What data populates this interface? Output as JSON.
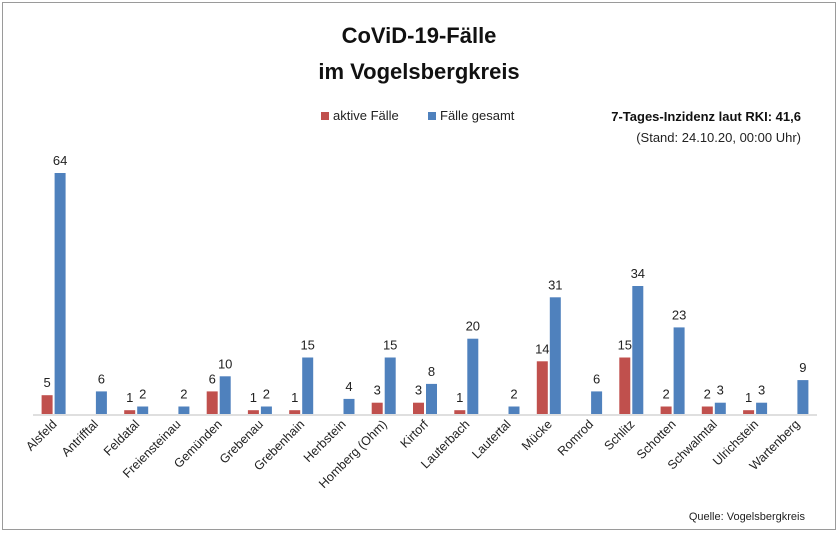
{
  "chart_data": {
    "type": "bar",
    "title": "CoViD-19-Fälle",
    "subtitle": "im Vogelsbergkreis",
    "info_line_1": "7-Tages-Inzidenz laut RKI: 41,6",
    "info_line_2": "(Stand: 24.10.20, 00:00 Uhr)",
    "source": "Quelle: Vogelsbergkreis",
    "categories": [
      "Alsfeld",
      "Antrifftal",
      "Feldatal",
      "Freiensteinau",
      "Gemünden",
      "Grebenau",
      "Grebenhain",
      "Herbstein",
      "Homberg (Ohm)",
      "Kirtorf",
      "Lauterbach",
      "Lautertal",
      "Mücke",
      "Romrod",
      "Schlitz",
      "Schotten",
      "Schwalmtal",
      "Ulrichstein",
      "Wartenberg"
    ],
    "series": [
      {
        "name": "aktive Fälle",
        "color": "#c0504d",
        "values": [
          5,
          0,
          1,
          0,
          6,
          1,
          1,
          0,
          3,
          3,
          1,
          0,
          14,
          0,
          15,
          2,
          2,
          1,
          0
        ],
        "labels": [
          "5",
          "",
          "1",
          "",
          "6",
          "1",
          "1",
          "",
          "3",
          "3",
          "1",
          "",
          "14",
          "",
          "15",
          "2",
          "2",
          "1",
          ""
        ]
      },
      {
        "name": "Fälle gesamt",
        "color": "#4f81bd",
        "values": [
          64,
          6,
          2,
          2,
          10,
          2,
          15,
          4,
          15,
          8,
          20,
          2,
          31,
          6,
          34,
          23,
          3,
          3,
          9
        ],
        "labels": [
          "64",
          "6",
          "2",
          "2",
          "10",
          "2",
          "15",
          "4",
          "15",
          "8",
          "20",
          "2",
          "31",
          "6",
          "34",
          "23",
          "3",
          "3",
          "9"
        ]
      }
    ],
    "ylim": [
      0,
      68
    ],
    "legend_position": "top-center",
    "grid": false
  }
}
